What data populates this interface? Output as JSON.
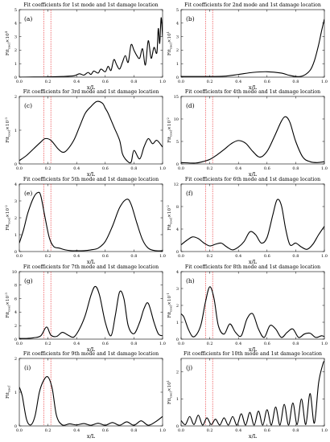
{
  "chart_data": [
    {
      "type": "line",
      "panel": "(a)",
      "title": "Fit coefficients for 1st mode and 1st damage location",
      "xlabel": "x/L",
      "ylabel": "Fit_coef ×10^4",
      "ylabel_main": "Fit",
      "ylabel_sub": "coef",
      "ylabel_suffix": "×10",
      "ylabel_exp": "4",
      "xlim": [
        0,
        1
      ],
      "ylim": [
        0,
        5
      ],
      "xticks": [
        "0.0",
        "0.2",
        "0.4",
        "0.6",
        "0.8",
        "1.0"
      ],
      "yticks": [
        "0",
        "1",
        "2",
        "3",
        "4",
        "5"
      ],
      "damage_lines": [
        0.17,
        0.22
      ],
      "series": [
        {
          "x": [
            0,
            0.1,
            0.2,
            0.3,
            0.38,
            0.42,
            0.45,
            0.48,
            0.5,
            0.52,
            0.55,
            0.57,
            0.6,
            0.62,
            0.64,
            0.66,
            0.68,
            0.7,
            0.72,
            0.74,
            0.76,
            0.78,
            0.8,
            0.82,
            0.84,
            0.86,
            0.88,
            0.9,
            0.92,
            0.94,
            0.96,
            0.97,
            0.98,
            0.99,
            1.0
          ],
          "y": [
            0,
            0.01,
            0.02,
            0.05,
            0.1,
            0.25,
            0.15,
            0.35,
            0.2,
            0.45,
            0.3,
            0.6,
            0.4,
            0.8,
            0.5,
            1.3,
            0.9,
            0.6,
            1.1,
            1.6,
            1.1,
            2.4,
            2.0,
            1.6,
            1.4,
            2.1,
            0.9,
            2.7,
            1.4,
            2.2,
            1.8,
            3.6,
            2.5,
            4.4,
            3.0
          ]
        }
      ]
    },
    {
      "type": "line",
      "panel": "(b)",
      "title": "Fit coefficients for 2nd mode and 1st damage location",
      "xlabel": "x/L",
      "ylabel": "Fit_coef ×10^1",
      "ylabel_main": "Fit",
      "ylabel_sub": "coef",
      "ylabel_suffix": "×10",
      "ylabel_exp": "1",
      "xlim": [
        0,
        1
      ],
      "ylim": [
        0,
        5
      ],
      "xticks": [
        "0.0",
        "0.2",
        "0.4",
        "0.6",
        "0.8",
        "1.0"
      ],
      "yticks": [
        "0",
        "1",
        "2",
        "3",
        "4",
        "5"
      ],
      "damage_lines": [
        0.17,
        0.22
      ],
      "series": [
        {
          "x": [
            0,
            0.1,
            0.2,
            0.3,
            0.4,
            0.5,
            0.6,
            0.7,
            0.75,
            0.8,
            0.85,
            0.9,
            0.93,
            0.96,
            0.98,
            1.0
          ],
          "y": [
            0.05,
            0.05,
            0.05,
            0.07,
            0.2,
            0.35,
            0.4,
            0.3,
            0.15,
            0.05,
            0.1,
            0.5,
            1.2,
            2.4,
            3.4,
            4.3
          ]
        }
      ]
    },
    {
      "type": "line",
      "panel": "(c)",
      "title": "Fit coefficients for 3rd mode and 1st damage location",
      "xlabel": "x/L",
      "ylabel": "Fit_coef ×10^-3",
      "ylabel_main": "Fit",
      "ylabel_sub": "coef",
      "ylabel_suffix": "×10",
      "ylabel_exp": "-3",
      "xlim": [
        0,
        1
      ],
      "ylim": [
        0,
        2
      ],
      "xticks": [
        "0.0",
        "0.2",
        "0.4",
        "0.6",
        "0.8",
        "1.0"
      ],
      "yticks": [
        "0",
        "1",
        "2"
      ],
      "damage_lines": [
        0.17,
        0.22
      ],
      "series": [
        {
          "x": [
            0,
            0.05,
            0.1,
            0.15,
            0.18,
            0.22,
            0.27,
            0.3,
            0.33,
            0.38,
            0.42,
            0.46,
            0.5,
            0.54,
            0.58,
            0.6,
            0.62,
            0.66,
            0.7,
            0.72,
            0.75,
            0.78,
            0.8,
            0.84,
            0.87,
            0.9,
            0.93,
            0.96,
            1.0
          ],
          "y": [
            0.1,
            0.25,
            0.45,
            0.65,
            0.75,
            0.7,
            0.45,
            0.35,
            0.4,
            0.7,
            1.1,
            1.5,
            1.7,
            1.85,
            1.8,
            1.65,
            1.5,
            1.1,
            0.7,
            0.3,
            0.1,
            0.05,
            0.4,
            0.15,
            0.5,
            0.75,
            0.6,
            0.7,
            0.5
          ]
        }
      ]
    },
    {
      "type": "line",
      "panel": "(d)",
      "title": "Fit coefficients for 4th mode and 1st damage location",
      "xlabel": "x/L",
      "ylabel": "Fit_coef ×10^-2",
      "ylabel_main": "Fit",
      "ylabel_sub": "coef",
      "ylabel_suffix": "×10",
      "ylabel_exp": "-2",
      "xlim": [
        0,
        1
      ],
      "ylim": [
        0,
        15
      ],
      "xticks": [
        "0.0",
        "0.2",
        "0.4",
        "0.6",
        "0.8",
        "1.0"
      ],
      "yticks": [
        "0",
        "5",
        "10",
        "15"
      ],
      "damage_lines": [
        0.17,
        0.22
      ],
      "series": [
        {
          "x": [
            0,
            0.1,
            0.15,
            0.2,
            0.25,
            0.3,
            0.35,
            0.4,
            0.45,
            0.5,
            0.55,
            0.6,
            0.65,
            0.7,
            0.73,
            0.76,
            0.8,
            0.85,
            0.9,
            0.95,
            1.0
          ],
          "y": [
            0.3,
            0.2,
            0.5,
            1.0,
            2.0,
            3.2,
            4.5,
            5.2,
            4.6,
            2.8,
            1.5,
            2.8,
            6.0,
            9.5,
            10.5,
            9.2,
            5.0,
            1.5,
            0.5,
            0.3,
            0.5
          ]
        }
      ]
    },
    {
      "type": "line",
      "panel": "(e)",
      "title": "Fit coefficients for 5th mode and 1st damage location",
      "xlabel": "x/L",
      "ylabel": "Fit_coef ×10^-2",
      "ylabel_main": "Fit",
      "ylabel_sub": "coef",
      "ylabel_suffix": "×10",
      "ylabel_exp": "-2",
      "xlim": [
        0,
        1
      ],
      "ylim": [
        0,
        4
      ],
      "xticks": [
        "0.0",
        "0.2",
        "0.4",
        "0.6",
        "0.8",
        "1.0"
      ],
      "yticks": [
        "0",
        "1",
        "2",
        "3",
        "4"
      ],
      "damage_lines": [
        0.17,
        0.22
      ],
      "series": [
        {
          "x": [
            0,
            0.03,
            0.06,
            0.1,
            0.13,
            0.15,
            0.18,
            0.21,
            0.24,
            0.28,
            0.32,
            0.36,
            0.4,
            0.45,
            0.5,
            0.55,
            0.6,
            0.65,
            0.7,
            0.75,
            0.78,
            0.82,
            0.86,
            0.9,
            0.95,
            1.0
          ],
          "y": [
            0.5,
            1.3,
            2.3,
            3.2,
            3.5,
            3.3,
            2.0,
            0.8,
            0.3,
            0.2,
            0.1,
            0.05,
            0.05,
            0.05,
            0.1,
            0.2,
            0.6,
            1.5,
            2.6,
            3.1,
            2.8,
            1.7,
            0.7,
            0.2,
            0.05,
            0.05
          ]
        }
      ]
    },
    {
      "type": "line",
      "panel": "(f)",
      "title": "Fit coefficients for 6th mode and 1st damage location",
      "xlabel": "x/L",
      "ylabel": "Fit_coef ×10^-2",
      "ylabel_main": "Fit",
      "ylabel_sub": "coef",
      "ylabel_suffix": "×10",
      "ylabel_exp": "-2",
      "xlim": [
        0,
        1
      ],
      "ylim": [
        0,
        12
      ],
      "xticks": [
        "0.0",
        "0.2",
        "0.4",
        "0.6",
        "0.8",
        "1.0"
      ],
      "yticks": [
        "0",
        "4",
        "8",
        "12"
      ],
      "damage_lines": [
        0.17,
        0.22
      ],
      "series": [
        {
          "x": [
            0,
            0.04,
            0.08,
            0.12,
            0.16,
            0.2,
            0.24,
            0.28,
            0.32,
            0.36,
            0.4,
            0.44,
            0.48,
            0.52,
            0.56,
            0.6,
            0.64,
            0.67,
            0.7,
            0.73,
            0.76,
            0.8,
            0.84,
            0.88,
            0.92,
            0.96,
            1.0
          ],
          "y": [
            1.2,
            2.0,
            2.6,
            2.3,
            1.5,
            1.0,
            1.3,
            1.5,
            0.8,
            0.3,
            0.8,
            1.8,
            3.5,
            3.0,
            1.5,
            2.5,
            6.5,
            9.2,
            8.2,
            4.0,
            1.2,
            1.5,
            0.8,
            0.4,
            1.3,
            3.0,
            4.5
          ]
        }
      ]
    },
    {
      "type": "line",
      "panel": "(g)",
      "title": "Fit coefficients for 7th mode and 1st damage location",
      "xlabel": "x/L",
      "ylabel": "Fit_coef ×10^-3",
      "ylabel_main": "Fit",
      "ylabel_sub": "coef",
      "ylabel_suffix": "×10",
      "ylabel_exp": "-3",
      "xlim": [
        0,
        1
      ],
      "ylim": [
        0,
        10
      ],
      "xticks": [
        "0.0",
        "0.2",
        "0.4",
        "0.6",
        "0.8",
        "1.0"
      ],
      "yticks": [
        "0",
        "2",
        "4",
        "6",
        "8",
        "10"
      ],
      "damage_lines": [
        0.17,
        0.22
      ],
      "series": [
        {
          "x": [
            0,
            0.05,
            0.1,
            0.15,
            0.19,
            0.22,
            0.26,
            0.3,
            0.34,
            0.38,
            0.42,
            0.46,
            0.5,
            0.53,
            0.56,
            0.6,
            0.64,
            0.67,
            0.7,
            0.73,
            0.76,
            0.8,
            0.84,
            0.87,
            0.9,
            0.94,
            0.97,
            1.0
          ],
          "y": [
            0.1,
            0.1,
            0.2,
            0.5,
            1.8,
            0.6,
            0.4,
            1.0,
            0.6,
            0.3,
            1.5,
            3.5,
            6.5,
            7.8,
            6.5,
            2.5,
            0.5,
            3.5,
            7.0,
            6.0,
            2.0,
            0.8,
            2.5,
            4.5,
            5.3,
            2.5,
            0.8,
            0.5
          ]
        }
      ]
    },
    {
      "type": "line",
      "panel": "(h)",
      "title": "Fit coefficients for 8th mode and 1st damage location",
      "xlabel": "x/L",
      "ylabel": "Fit_coef ×10^-1",
      "ylabel_main": "Fit",
      "ylabel_sub": "coef",
      "ylabel_suffix": "×10",
      "ylabel_exp": "-1",
      "xlim": [
        0,
        1
      ],
      "ylim": [
        0,
        4
      ],
      "xticks": [
        "0.0",
        "0.2",
        "0.4",
        "0.6",
        "0.8",
        "1.0"
      ],
      "yticks": [
        "0",
        "1",
        "2",
        "3",
        "4"
      ],
      "damage_lines": [
        0.17,
        0.22
      ],
      "series": [
        {
          "x": [
            0,
            0.02,
            0.05,
            0.08,
            0.11,
            0.14,
            0.17,
            0.2,
            0.23,
            0.26,
            0.3,
            0.34,
            0.38,
            0.42,
            0.46,
            0.5,
            0.54,
            0.58,
            0.62,
            0.66,
            0.7,
            0.74,
            0.78,
            0.82,
            0.86,
            0.9,
            0.94,
            0.98,
            1.0
          ],
          "y": [
            1.5,
            1.3,
            0.6,
            0.15,
            0.3,
            0.9,
            2.2,
            3.1,
            2.4,
            0.8,
            0.3,
            0.9,
            0.4,
            0.2,
            1.2,
            1.5,
            0.6,
            0.1,
            0.8,
            0.6,
            0.1,
            0.4,
            0.6,
            0.1,
            0.3,
            0.35,
            0.1,
            0.2,
            0.15
          ]
        }
      ]
    },
    {
      "type": "line",
      "panel": "(i)",
      "title": "Fit coefficients for 9th mode and 1st damage location",
      "xlabel": "x/L",
      "ylabel": "Fit_coef",
      "ylabel_main": "Fit",
      "ylabel_sub": "coef",
      "ylabel_suffix": "",
      "ylabel_exp": "",
      "xlim": [
        0,
        1
      ],
      "ylim": [
        0,
        2
      ],
      "xticks": [
        "0.0",
        "0.2",
        "0.4",
        "0.6",
        "0.8",
        "1.0"
      ],
      "yticks": [
        "0",
        "1",
        "2"
      ],
      "damage_lines": [
        0.17,
        0.22
      ],
      "series": [
        {
          "x": [
            0,
            0.02,
            0.05,
            0.08,
            0.11,
            0.14,
            0.17,
            0.2,
            0.23,
            0.26,
            0.3,
            0.35,
            0.4,
            0.45,
            0.5,
            0.55,
            0.6,
            0.65,
            0.7,
            0.75,
            0.8,
            0.85,
            0.9,
            0.95,
            1.0
          ],
          "y": [
            1.15,
            0.9,
            0.2,
            0.03,
            0.3,
            1.0,
            1.35,
            1.45,
            1.1,
            0.3,
            0.03,
            0.06,
            0.03,
            0.07,
            0.02,
            0.08,
            0.02,
            0.1,
            0.02,
            0.12,
            0.02,
            0.15,
            0.02,
            0.12,
            0.28
          ]
        }
      ]
    },
    {
      "type": "line",
      "panel": "(j)",
      "title": "Fit coefficients for 10th mode and 1st damage location",
      "xlabel": "x/L",
      "ylabel": "Fit_coef ×10^1",
      "ylabel_main": "Fit",
      "ylabel_sub": "coef",
      "ylabel_suffix": "×10",
      "ylabel_exp": "1",
      "xlim": [
        0,
        1
      ],
      "ylim": [
        0,
        2.5
      ],
      "xticks": [
        "0.0",
        "0.2",
        "0.4",
        "0.6",
        "0.8",
        "1.0"
      ],
      "yticks": [
        "0",
        "1",
        "2"
      ],
      "damage_lines": [
        0.17,
        0.22
      ],
      "series": [
        {
          "x": [
            0,
            0.03,
            0.06,
            0.09,
            0.12,
            0.15,
            0.18,
            0.21,
            0.24,
            0.27,
            0.3,
            0.33,
            0.36,
            0.39,
            0.42,
            0.45,
            0.48,
            0.51,
            0.54,
            0.57,
            0.6,
            0.63,
            0.66,
            0.69,
            0.72,
            0.75,
            0.78,
            0.81,
            0.84,
            0.87,
            0.9,
            0.93,
            0.96,
            0.99,
            1.0
          ],
          "y": [
            0.2,
            0.05,
            0.35,
            0.05,
            0.4,
            0.03,
            0.3,
            0.05,
            0.25,
            0.03,
            0.3,
            0.03,
            0.35,
            0.03,
            0.45,
            0.03,
            0.5,
            0.03,
            0.55,
            0.03,
            0.6,
            0.03,
            0.7,
            0.03,
            0.8,
            0.03,
            0.85,
            0.05,
            1.0,
            0.05,
            1.2,
            0.1,
            1.6,
            2.3,
            2.4
          ]
        }
      ]
    }
  ]
}
